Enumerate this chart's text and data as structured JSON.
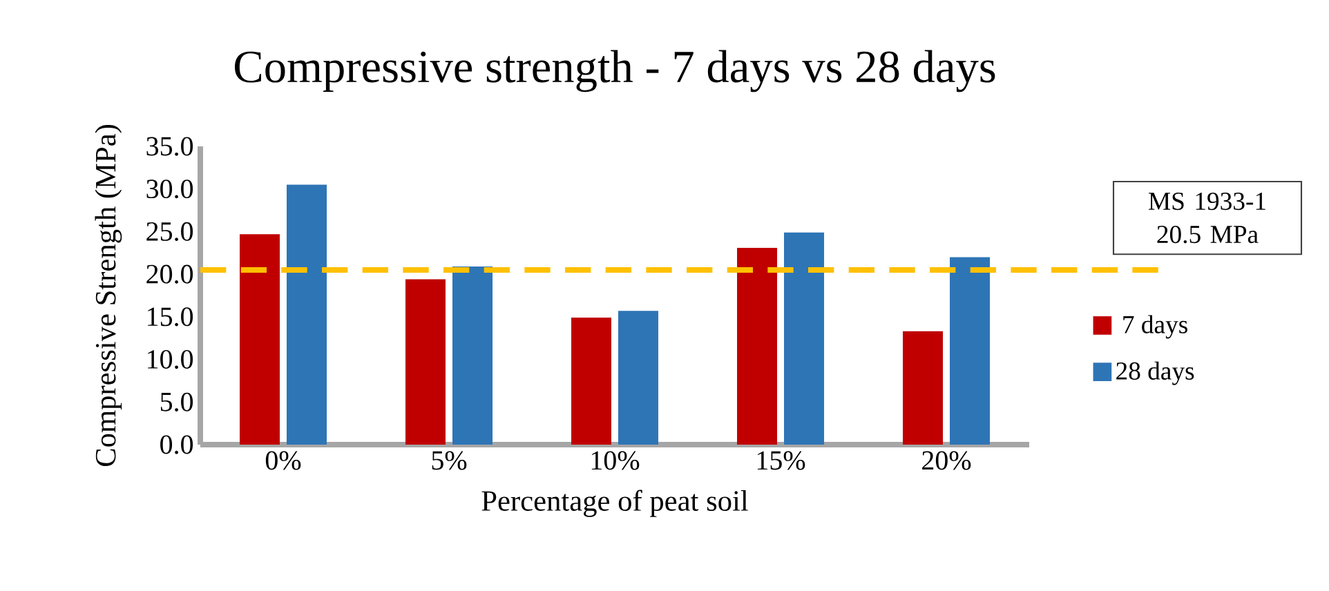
{
  "chart_data": {
    "type": "bar",
    "title": "Compressive strength - 7 days vs 28 days",
    "xlabel": "Percentage of peat soil",
    "ylabel": "Compressive Strength (MPa)",
    "categories": [
      "0%",
      "5%",
      "10%",
      "15%",
      "20%"
    ],
    "series": [
      {
        "name": "7 days",
        "color": "#c00000",
        "values": [
          24.7,
          19.4,
          14.9,
          23.1,
          13.3
        ]
      },
      {
        "name": "28 days",
        "color": "#2e75b6",
        "values": [
          30.5,
          20.9,
          15.7,
          24.9,
          22.0
        ]
      }
    ],
    "ylim": [
      0,
      35
    ],
    "yticks": [
      {
        "value": 0,
        "label": "0.0"
      },
      {
        "value": 5,
        "label": "5.0"
      },
      {
        "value": 10,
        "label": "10.0"
      },
      {
        "value": 15,
        "label": "15.0"
      },
      {
        "value": 20,
        "label": "20.0"
      },
      {
        "value": 25,
        "label": "25.0"
      },
      {
        "value": 30,
        "label": "30.0"
      },
      {
        "value": 35,
        "label": "35.0"
      }
    ],
    "ref_lines": [
      {
        "axis": "y",
        "value": 20.5,
        "label": "MS 1933-1 20.5 MPa",
        "color": "#ffc000",
        "line_style": "dashed"
      }
    ],
    "grid": false,
    "legend": "right"
  }
}
